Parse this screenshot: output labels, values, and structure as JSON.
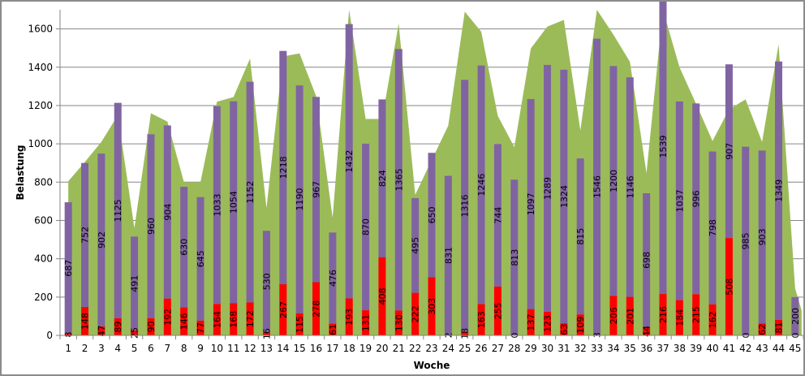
{
  "chart_data": {
    "type": "bar",
    "subtype": "stacked-bar-with-area",
    "xlabel": "Woche",
    "ylabel": "Belastung",
    "ylim": [
      0,
      1700
    ],
    "yticks": [
      0,
      200,
      400,
      600,
      800,
      1000,
      1200,
      1400,
      1600
    ],
    "grid": true,
    "legend": "none",
    "categories": [
      "1",
      "2",
      "3",
      "4",
      "5",
      "6",
      "7",
      "8",
      "9",
      "10",
      "11",
      "12",
      "13",
      "14",
      "15",
      "16",
      "17",
      "18",
      "19",
      "20",
      "21",
      "22",
      "23",
      "24",
      "25",
      "26",
      "27",
      "28",
      "29",
      "30",
      "31",
      "32",
      "33",
      "34",
      "35",
      "36",
      "37",
      "38",
      "39",
      "40",
      "41",
      "42",
      "43",
      "44",
      "45"
    ],
    "series": [
      {
        "key": "red",
        "kind": "bar-stack-bottom",
        "color": "#ff0000",
        "values": [
          8,
          148,
          47,
          89,
          25,
          90,
          192,
          146,
          77,
          164,
          168,
          172,
          16,
          267,
          115,
          278,
          61,
          193,
          131,
          408,
          130,
          222,
          303,
          2,
          18,
          163,
          255,
          0,
          137,
          123,
          63,
          109,
          3,
          206,
          201,
          44,
          216,
          184,
          215,
          162,
          508,
          0,
          62,
          81,
          0
        ]
      },
      {
        "key": "purple",
        "kind": "bar-stack-top",
        "color": "#8064a2",
        "values": [
          687,
          752,
          902,
          1125,
          491,
          960,
          904,
          630,
          645,
          1033,
          1054,
          1152,
          530,
          1218,
          1190,
          967,
          476,
          1432,
          870,
          824,
          1365,
          495,
          650,
          831,
          1316,
          1246,
          744,
          813,
          1097,
          1289,
          1324,
          815,
          1546,
          1200,
          1146,
          698,
          1539,
          1037,
          996,
          798,
          907,
          985,
          903,
          1349,
          200
        ]
      },
      {
        "key": "green",
        "kind": "area",
        "color": "#9bbb59",
        "values": [
          805,
          905,
          1010,
          1150,
          560,
          1160,
          1116,
          800,
          800,
          1220,
          1244,
          1445,
          665,
          1456,
          1472,
          1250,
          615,
          1700,
          1130,
          1130,
          1628,
          734,
          915,
          1095,
          1690,
          1585,
          1146,
          983,
          1498,
          1612,
          1647,
          1070,
          1700,
          1570,
          1428,
          848,
          1700,
          1400,
          1210,
          1015,
          1180,
          1232,
          1010,
          1520,
          246
        ]
      }
    ]
  }
}
